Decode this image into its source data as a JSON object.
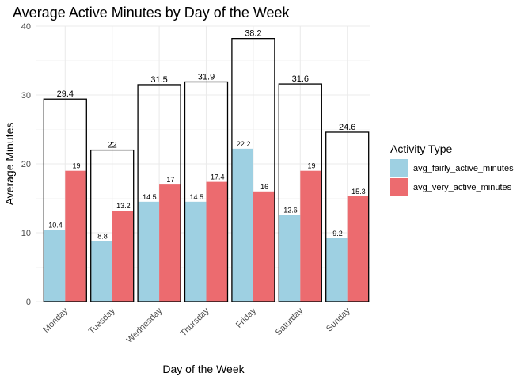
{
  "chart_data": {
    "type": "bar",
    "title": "Average Active Minutes by Day of the Week",
    "xlabel": "Day of the Week",
    "ylabel": "Average Minutes",
    "ylim": [
      0,
      40
    ],
    "yticks": [
      0,
      10,
      20,
      30,
      40
    ],
    "grid": true,
    "legend": {
      "title": "Activity Type",
      "placement": "right"
    },
    "categories": [
      "Monday",
      "Tuesday",
      "Wednesday",
      "Thursday",
      "Friday",
      "Saturday",
      "Sunday"
    ],
    "series": [
      {
        "name": "avg_fairly_active_minutes",
        "color": "#9ED0E2",
        "values": [
          10.4,
          8.8,
          14.5,
          14.5,
          22.2,
          12.6,
          9.2
        ]
      },
      {
        "name": "avg_very_active_minutes",
        "color": "#EC6B6F",
        "values": [
          19,
          13.2,
          17,
          17.4,
          16,
          19,
          15.3
        ]
      }
    ],
    "totals": {
      "values": [
        29.4,
        22,
        31.5,
        31.9,
        38.2,
        31.6,
        24.6
      ],
      "outline_color": "#000000"
    }
  }
}
